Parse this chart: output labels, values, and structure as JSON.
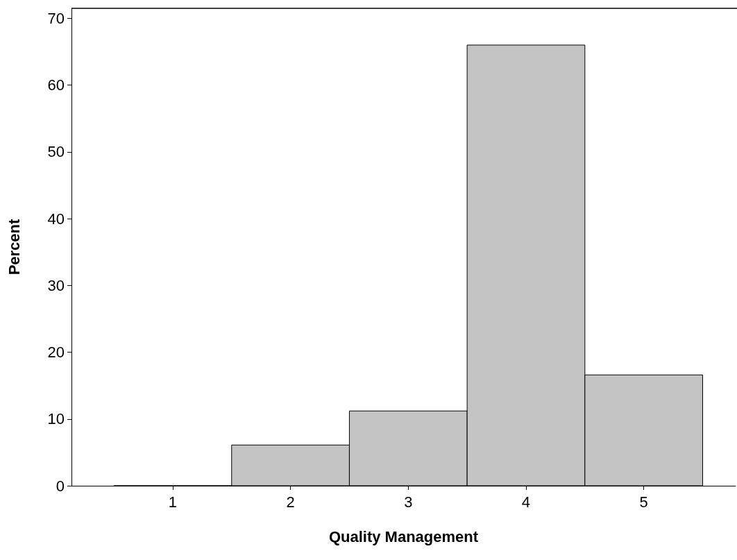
{
  "chart_data": {
    "type": "histogram",
    "xlabel": "Quality Management",
    "ylabel": "Percent",
    "bins": [
      0.5,
      1.5,
      2.5,
      3.5,
      4.5,
      5.5
    ],
    "values": [
      0,
      6.1,
      11.2,
      66,
      16.6
    ],
    "color": "#c4c4c4",
    "xlim": [
      0.14,
      5.78
    ],
    "xticks": [
      1,
      2,
      3,
      4,
      5
    ],
    "ylim": [
      0,
      71.5
    ],
    "yticks": [
      0,
      10,
      20,
      30,
      40,
      50,
      60,
      70
    ],
    "grid": false
  }
}
